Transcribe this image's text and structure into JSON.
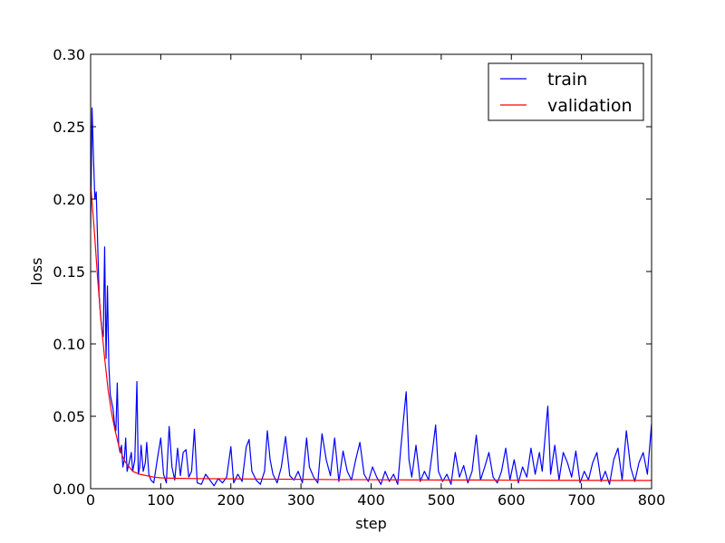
{
  "chart_data": {
    "type": "line",
    "title": "",
    "xlabel": "step",
    "ylabel": "loss",
    "xlim": [
      0,
      800
    ],
    "ylim": [
      0.0,
      0.3
    ],
    "x_ticks": [
      "0",
      "100",
      "200",
      "300",
      "400",
      "500",
      "600",
      "700",
      "800"
    ],
    "y_ticks": [
      "0.00",
      "0.05",
      "0.10",
      "0.15",
      "0.20",
      "0.25",
      "0.30"
    ],
    "grid": false,
    "legend_position": "top-right",
    "series": [
      {
        "name": "train",
        "color": "#0000ff",
        "points": [
          [
            0,
            0.18
          ],
          [
            2,
            0.263
          ],
          [
            4,
            0.23
          ],
          [
            6,
            0.2
          ],
          [
            8,
            0.205
          ],
          [
            10,
            0.17
          ],
          [
            12,
            0.135
          ],
          [
            14,
            0.12
          ],
          [
            16,
            0.11
          ],
          [
            18,
            0.105
          ],
          [
            20,
            0.167
          ],
          [
            22,
            0.09
          ],
          [
            24,
            0.14
          ],
          [
            26,
            0.085
          ],
          [
            28,
            0.065
          ],
          [
            30,
            0.06
          ],
          [
            32,
            0.055
          ],
          [
            34,
            0.045
          ],
          [
            36,
            0.04
          ],
          [
            38,
            0.073
          ],
          [
            40,
            0.03
          ],
          [
            42,
            0.025
          ],
          [
            44,
            0.03
          ],
          [
            46,
            0.015
          ],
          [
            48,
            0.02
          ],
          [
            50,
            0.035
          ],
          [
            52,
            0.012
          ],
          [
            55,
            0.018
          ],
          [
            58,
            0.025
          ],
          [
            60,
            0.012
          ],
          [
            63,
            0.02
          ],
          [
            66,
            0.074
          ],
          [
            68,
            0.01
          ],
          [
            70,
            0.015
          ],
          [
            72,
            0.03
          ],
          [
            75,
            0.012
          ],
          [
            78,
            0.018
          ],
          [
            80,
            0.032
          ],
          [
            83,
            0.01
          ],
          [
            86,
            0.006
          ],
          [
            90,
            0.004
          ],
          [
            95,
            0.02
          ],
          [
            100,
            0.035
          ],
          [
            104,
            0.01
          ],
          [
            108,
            0.004
          ],
          [
            112,
            0.043
          ],
          [
            116,
            0.015
          ],
          [
            120,
            0.006
          ],
          [
            124,
            0.028
          ],
          [
            128,
            0.009
          ],
          [
            132,
            0.025
          ],
          [
            136,
            0.027
          ],
          [
            140,
            0.008
          ],
          [
            144,
            0.012
          ],
          [
            148,
            0.041
          ],
          [
            152,
            0.004
          ],
          [
            158,
            0.003
          ],
          [
            164,
            0.01
          ],
          [
            170,
            0.006
          ],
          [
            176,
            0.002
          ],
          [
            182,
            0.007
          ],
          [
            188,
            0.004
          ],
          [
            194,
            0.008
          ],
          [
            200,
            0.029
          ],
          [
            204,
            0.004
          ],
          [
            210,
            0.01
          ],
          [
            216,
            0.005
          ],
          [
            222,
            0.029
          ],
          [
            226,
            0.034
          ],
          [
            230,
            0.012
          ],
          [
            236,
            0.006
          ],
          [
            242,
            0.003
          ],
          [
            248,
            0.012
          ],
          [
            252,
            0.04
          ],
          [
            256,
            0.02
          ],
          [
            260,
            0.01
          ],
          [
            266,
            0.004
          ],
          [
            272,
            0.015
          ],
          [
            278,
            0.036
          ],
          [
            284,
            0.009
          ],
          [
            290,
            0.006
          ],
          [
            296,
            0.012
          ],
          [
            302,
            0.004
          ],
          [
            308,
            0.035
          ],
          [
            312,
            0.015
          ],
          [
            318,
            0.008
          ],
          [
            324,
            0.004
          ],
          [
            330,
            0.038
          ],
          [
            336,
            0.02
          ],
          [
            342,
            0.009
          ],
          [
            348,
            0.035
          ],
          [
            354,
            0.005
          ],
          [
            360,
            0.026
          ],
          [
            366,
            0.012
          ],
          [
            372,
            0.006
          ],
          [
            378,
            0.02
          ],
          [
            384,
            0.032
          ],
          [
            390,
            0.01
          ],
          [
            396,
            0.005
          ],
          [
            402,
            0.015
          ],
          [
            408,
            0.008
          ],
          [
            414,
            0.003
          ],
          [
            420,
            0.012
          ],
          [
            426,
            0.005
          ],
          [
            432,
            0.01
          ],
          [
            438,
            0.003
          ],
          [
            442,
            0.026
          ],
          [
            446,
            0.047
          ],
          [
            450,
            0.067
          ],
          [
            454,
            0.02
          ],
          [
            458,
            0.008
          ],
          [
            464,
            0.03
          ],
          [
            470,
            0.005
          ],
          [
            476,
            0.012
          ],
          [
            482,
            0.006
          ],
          [
            488,
            0.028
          ],
          [
            492,
            0.044
          ],
          [
            496,
            0.012
          ],
          [
            502,
            0.005
          ],
          [
            508,
            0.01
          ],
          [
            514,
            0.003
          ],
          [
            520,
            0.025
          ],
          [
            526,
            0.008
          ],
          [
            532,
            0.016
          ],
          [
            538,
            0.004
          ],
          [
            544,
            0.012
          ],
          [
            550,
            0.037
          ],
          [
            556,
            0.006
          ],
          [
            562,
            0.015
          ],
          [
            568,
            0.025
          ],
          [
            574,
            0.008
          ],
          [
            580,
            0.004
          ],
          [
            586,
            0.012
          ],
          [
            592,
            0.028
          ],
          [
            598,
            0.006
          ],
          [
            604,
            0.02
          ],
          [
            610,
            0.004
          ],
          [
            616,
            0.015
          ],
          [
            622,
            0.008
          ],
          [
            628,
            0.028
          ],
          [
            634,
            0.01
          ],
          [
            640,
            0.025
          ],
          [
            644,
            0.012
          ],
          [
            648,
            0.035
          ],
          [
            652,
            0.057
          ],
          [
            656,
            0.01
          ],
          [
            662,
            0.03
          ],
          [
            668,
            0.006
          ],
          [
            674,
            0.025
          ],
          [
            680,
            0.018
          ],
          [
            686,
            0.008
          ],
          [
            692,
            0.026
          ],
          [
            698,
            0.004
          ],
          [
            704,
            0.012
          ],
          [
            710,
            0.006
          ],
          [
            716,
            0.018
          ],
          [
            722,
            0.025
          ],
          [
            728,
            0.005
          ],
          [
            734,
            0.012
          ],
          [
            740,
            0.003
          ],
          [
            746,
            0.02
          ],
          [
            752,
            0.028
          ],
          [
            758,
            0.006
          ],
          [
            764,
            0.04
          ],
          [
            770,
            0.015
          ],
          [
            776,
            0.005
          ],
          [
            782,
            0.018
          ],
          [
            788,
            0.025
          ],
          [
            794,
            0.01
          ],
          [
            800,
            0.045
          ]
        ]
      },
      {
        "name": "validation",
        "color": "#ff0000",
        "points": [
          [
            0,
            0.21
          ],
          [
            5,
            0.18
          ],
          [
            10,
            0.145
          ],
          [
            15,
            0.115
          ],
          [
            20,
            0.09
          ],
          [
            25,
            0.068
          ],
          [
            30,
            0.052
          ],
          [
            35,
            0.04
          ],
          [
            40,
            0.03
          ],
          [
            45,
            0.023
          ],
          [
            50,
            0.018
          ],
          [
            55,
            0.015
          ],
          [
            60,
            0.012
          ],
          [
            65,
            0.011
          ],
          [
            70,
            0.01
          ],
          [
            80,
            0.009
          ],
          [
            90,
            0.008
          ],
          [
            100,
            0.0075
          ],
          [
            120,
            0.0072
          ],
          [
            150,
            0.007
          ],
          [
            200,
            0.0068
          ],
          [
            250,
            0.0066
          ],
          [
            300,
            0.0065
          ],
          [
            350,
            0.0063
          ],
          [
            400,
            0.0062
          ],
          [
            450,
            0.0061
          ],
          [
            500,
            0.006
          ],
          [
            550,
            0.006
          ],
          [
            600,
            0.0059
          ],
          [
            650,
            0.0058
          ],
          [
            700,
            0.0058
          ],
          [
            750,
            0.0057
          ],
          [
            800,
            0.0057
          ]
        ]
      }
    ]
  }
}
